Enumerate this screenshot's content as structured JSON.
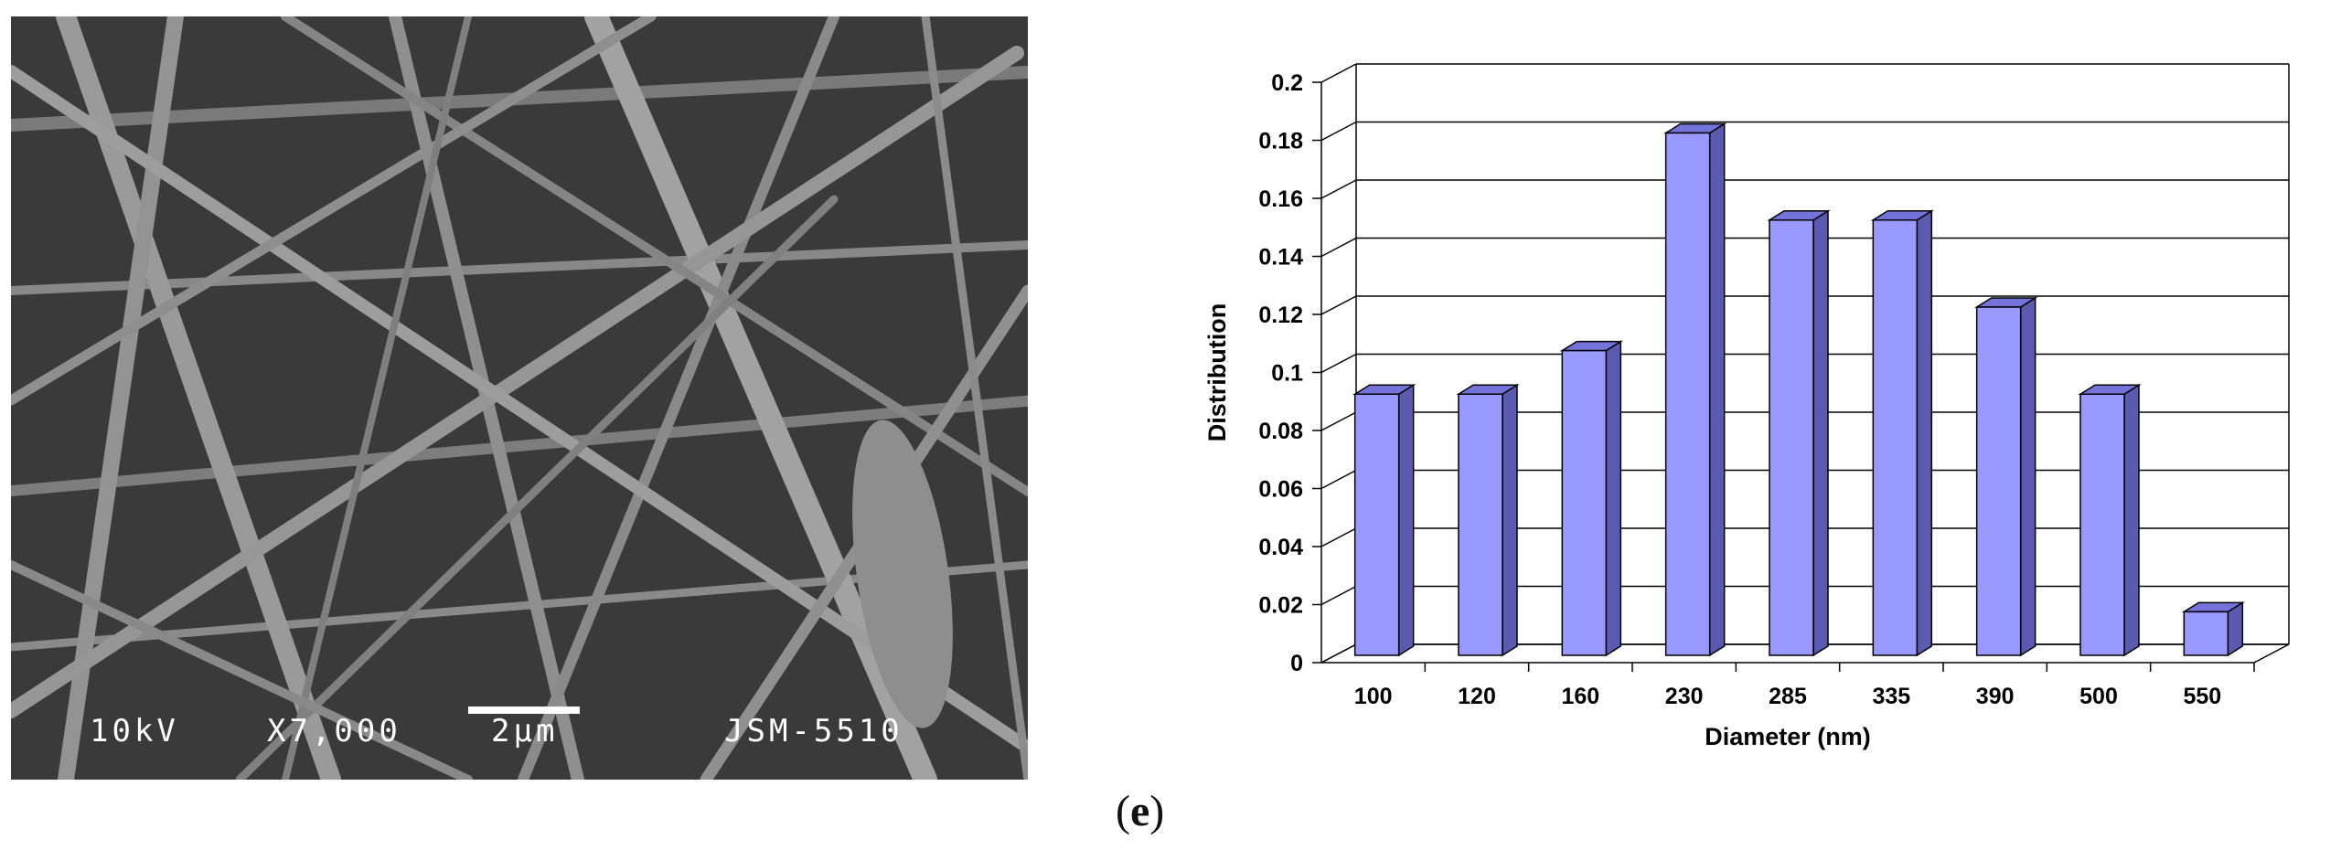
{
  "sem": {
    "voltage": "10kV",
    "magnification": "X7,000",
    "scale": "2μm",
    "instrument": "JSM-5510"
  },
  "caption": {
    "open": "(",
    "letter": "e",
    "close": ")"
  },
  "chart_data": {
    "type": "bar",
    "categories": [
      "100",
      "120",
      "160",
      "230",
      "285",
      "335",
      "390",
      "500",
      "550"
    ],
    "values": [
      0.09,
      0.09,
      0.105,
      0.18,
      0.15,
      0.15,
      0.12,
      0.09,
      0.015
    ],
    "xlabel": "Diameter (nm)",
    "ylabel": "Distribution",
    "ylim": [
      0,
      0.2
    ],
    "yticks": [
      "0",
      "0.02",
      "0.04",
      "0.06",
      "0.08",
      "0.1",
      "0.12",
      "0.14",
      "0.16",
      "0.18",
      "0.2"
    ],
    "grid": true,
    "colors": {
      "front": "#9999ff",
      "side": "#5a5ab0",
      "top": "#7373d9"
    }
  }
}
